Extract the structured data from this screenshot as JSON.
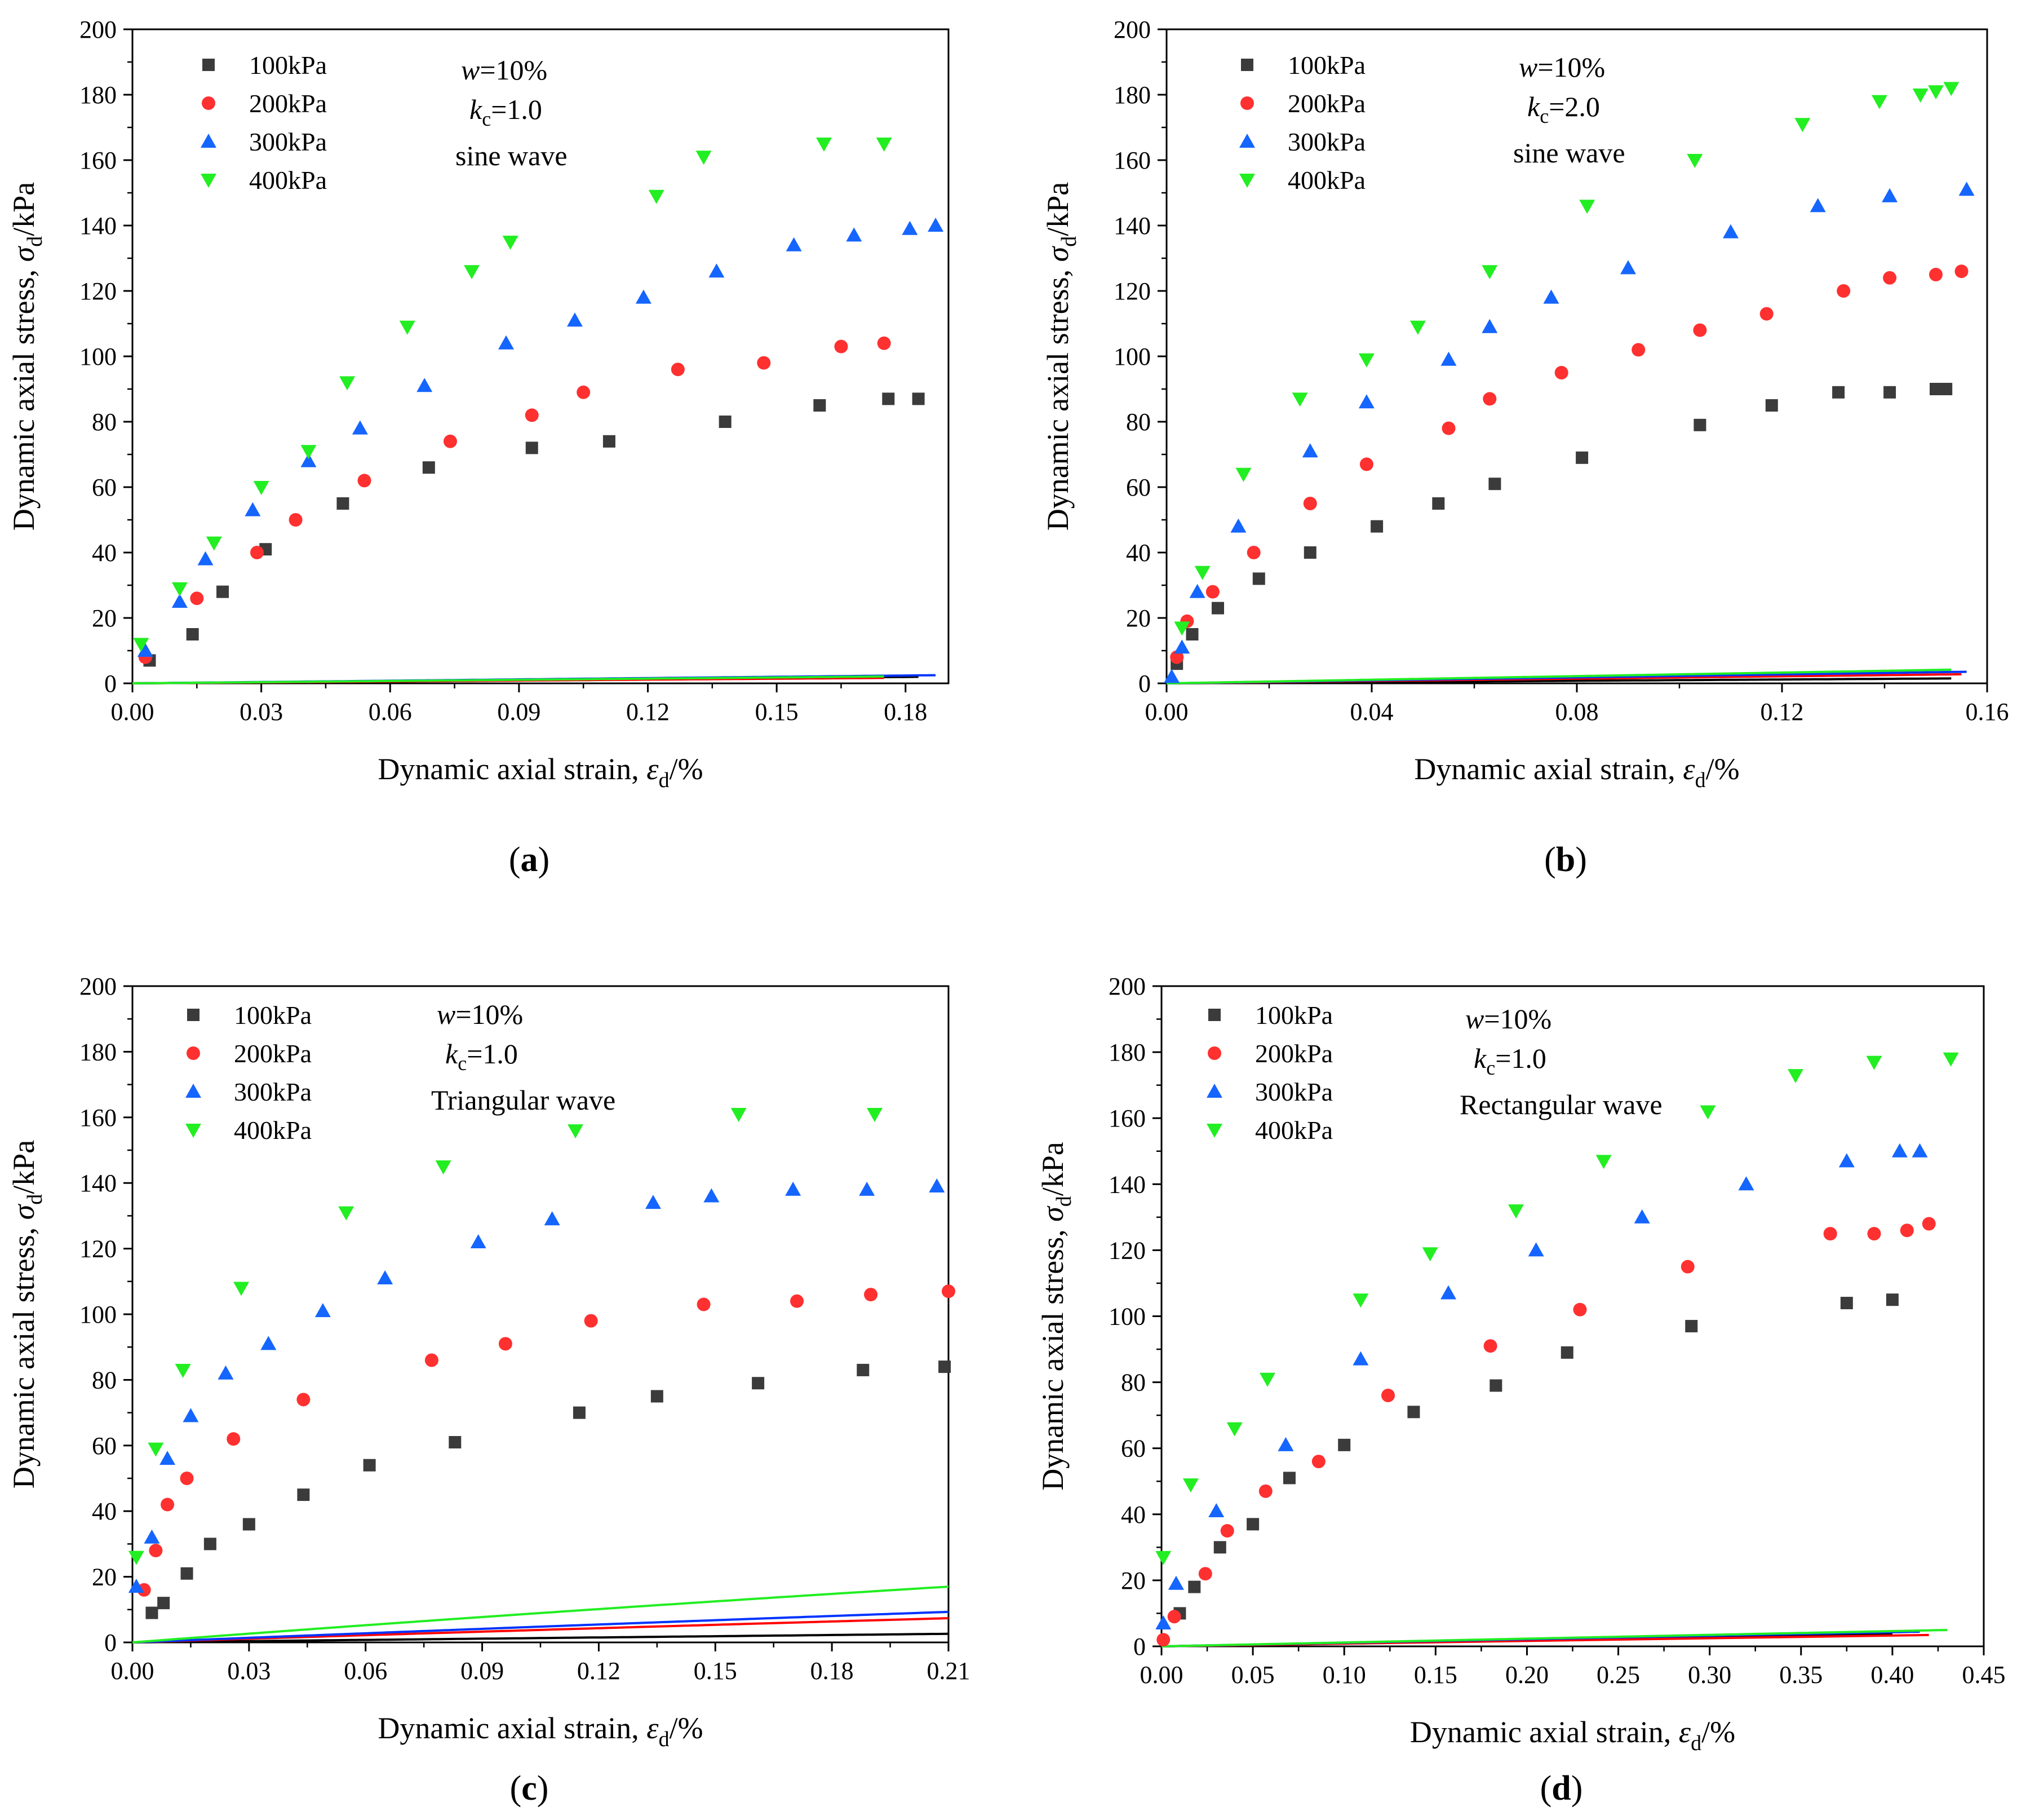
{
  "figure": {
    "panel_labels": [
      "(a)",
      "(b)",
      "(c)",
      "(d)"
    ],
    "colors": {
      "100kPa": "#3b3b3b",
      "200kPa": "#ff3030",
      "300kPa": "#1565ff",
      "400kPa": "#22ee22",
      "fit_100kPa": "#000000",
      "fit_200kPa": "#ff0000",
      "fit_300kPa": "#0033ff",
      "fit_400kPa": "#22ee22"
    },
    "markers": {
      "100kPa": "square",
      "200kPa": "circle",
      "300kPa": "triangle-up",
      "400kPa": "triangle-down"
    }
  },
  "chart_data": [
    {
      "type": "scatter",
      "panel": "(a)",
      "xlabel": "Dynamic axial strain, εd/%",
      "ylabel": "Dynamic axial stress, σd/kPa",
      "xlim": [
        0,
        0.19
      ],
      "ylim": [
        0,
        200
      ],
      "xticks": [
        "0.00",
        "0.03",
        "0.06",
        "0.09",
        "0.12",
        "0.15",
        "0.18"
      ],
      "yticks": [
        "0",
        "20",
        "40",
        "60",
        "80",
        "100",
        "120",
        "140",
        "160",
        "180",
        "200"
      ],
      "annotation": {
        "w": "w=10%",
        "kc": "kc=1.0",
        "wave": "sine wave"
      },
      "series": [
        {
          "name": "100kPa",
          "x": [
            0.004,
            0.014,
            0.021,
            0.031,
            0.049,
            0.069,
            0.093,
            0.111,
            0.138,
            0.16,
            0.176,
            0.183
          ],
          "y": [
            7,
            15,
            28,
            41,
            55,
            66,
            72,
            74,
            80,
            85,
            87,
            87
          ],
          "fit": {
            "a": 0.091,
            "b": 0.0045,
            "xmax": 0.183
          }
        },
        {
          "name": "200kPa",
          "x": [
            0.003,
            0.015,
            0.029,
            0.038,
            0.054,
            0.074,
            0.093,
            0.105,
            0.127,
            0.147,
            0.165,
            0.175
          ],
          "y": [
            8,
            26,
            40,
            50,
            62,
            74,
            82,
            89,
            96,
            98,
            103,
            104
          ],
          "fit": {
            "a": 0.1048,
            "b": 0.0038,
            "xmax": 0.175
          }
        },
        {
          "name": "300kPa",
          "x": [
            0.003,
            0.011,
            0.017,
            0.028,
            0.041,
            0.053,
            0.068,
            0.087,
            0.103,
            0.119,
            0.136,
            0.154,
            0.168,
            0.181,
            0.187
          ],
          "y": [
            10,
            25,
            38,
            53,
            68,
            78,
            91,
            104,
            111,
            118,
            126,
            134,
            137,
            139,
            140
          ],
          "fit": {
            "a": 0.0745,
            "b": 0.0032,
            "xmax": 0.187
          }
        },
        {
          "name": "400kPa",
          "x": [
            0.002,
            0.011,
            0.019,
            0.03,
            0.041,
            0.05,
            0.064,
            0.079,
            0.088,
            0.122,
            0.133,
            0.161,
            0.175
          ],
          "y": [
            12,
            29,
            43,
            60,
            71,
            92,
            109,
            126,
            135,
            149,
            161,
            165,
            165
          ],
          "fit": {
            "a": 0.0826,
            "b": 0.0018,
            "xmax": 0.175
          }
        }
      ]
    },
    {
      "type": "scatter",
      "panel": "(b)",
      "xlabel": "Dynamic axial strain, εd/%",
      "ylabel": "Dynamic axial stress, σd/kPa",
      "xlim": [
        0,
        0.16
      ],
      "ylim": [
        0,
        200
      ],
      "xticks": [
        "0.00",
        "0.04",
        "0.08",
        "0.12",
        "0.16"
      ],
      "yticks": [
        "0",
        "20",
        "40",
        "60",
        "80",
        "100",
        "120",
        "140",
        "160",
        "180",
        "200"
      ],
      "annotation": {
        "w": "w=10%",
        "kc": "kc=2.0",
        "wave": "sine wave"
      },
      "series": [
        {
          "name": "100kPa",
          "x": [
            0.002,
            0.005,
            0.01,
            0.018,
            0.028,
            0.041,
            0.053,
            0.064,
            0.081,
            0.104,
            0.118,
            0.131,
            0.141,
            0.15,
            0.152
          ],
          "y": [
            6,
            15,
            23,
            32,
            40,
            48,
            55,
            61,
            69,
            79,
            85,
            89,
            89,
            90,
            90
          ],
          "fit": {
            "a": 0.1014,
            "b": 0.0044,
            "xmax": 0.153
          }
        },
        {
          "name": "200kPa",
          "x": [
            0.002,
            0.004,
            0.009,
            0.017,
            0.028,
            0.039,
            0.055,
            0.063,
            0.077,
            0.092,
            0.104,
            0.117,
            0.132,
            0.141,
            0.15,
            0.155
          ],
          "y": [
            8,
            19,
            28,
            40,
            55,
            67,
            78,
            87,
            95,
            102,
            108,
            113,
            120,
            124,
            125,
            126
          ],
          "fit": {
            "a": 0.055,
            "b": 0.0061,
            "xmax": 0.155
          }
        },
        {
          "name": "300kPa",
          "x": [
            0.001,
            0.003,
            0.006,
            0.014,
            0.028,
            0.039,
            0.055,
            0.063,
            0.075,
            0.09,
            0.11,
            0.127,
            0.141,
            0.156
          ],
          "y": [
            2,
            11,
            28,
            48,
            71,
            86,
            99,
            109,
            118,
            127,
            138,
            146,
            149,
            151
          ],
          "fit": {
            "a": 0.0432,
            "b": 0.0055,
            "xmax": 0.156
          }
        },
        {
          "name": "400kPa",
          "x": [
            0.003,
            0.007,
            0.015,
            0.026,
            0.039,
            0.049,
            0.063,
            0.082,
            0.103,
            0.124,
            0.139,
            0.147,
            0.15,
            0.153
          ],
          "y": [
            17,
            34,
            64,
            87,
            99,
            109,
            126,
            146,
            160,
            171,
            178,
            180,
            181,
            182
          ],
          "fit": {
            "a": 0.0359,
            "b": 0.0044,
            "xmax": 0.153
          }
        }
      ]
    },
    {
      "type": "scatter",
      "panel": "(c)",
      "xlabel": "Dynamic axial strain, εd/%",
      "ylabel": "Dynamic axial stress, σd/kPa",
      "xlim": [
        0,
        0.21
      ],
      "ylim": [
        0,
        200
      ],
      "xticks": [
        "0.00",
        "0.03",
        "0.06",
        "0.09",
        "0.12",
        "0.15",
        "0.18",
        "0.21"
      ],
      "yticks": [
        "0",
        "20",
        "40",
        "60",
        "80",
        "100",
        "120",
        "140",
        "160",
        "180",
        "200"
      ],
      "annotation": {
        "w": "w=10%",
        "kc": "kc=1.0",
        "wave": "Triangular wave"
      },
      "series": [
        {
          "name": "100kPa",
          "x": [
            0.005,
            0.008,
            0.014,
            0.02,
            0.03,
            0.044,
            0.061,
            0.083,
            0.115,
            0.135,
            0.161,
            0.188,
            0.209
          ],
          "y": [
            9,
            12,
            21,
            30,
            36,
            45,
            54,
            61,
            70,
            75,
            79,
            83,
            84
          ],
          "fit": {
            "a": 0.0785,
            "b": 0.0082,
            "xmax": 0.21
          }
        },
        {
          "name": "200kPa",
          "x": [
            0.003,
            0.006,
            0.009,
            0.014,
            0.026,
            0.044,
            0.077,
            0.096,
            0.118,
            0.147,
            0.171,
            0.19,
            0.21
          ],
          "y": [
            16,
            28,
            42,
            50,
            62,
            74,
            86,
            91,
            98,
            103,
            104,
            106,
            107
          ],
          "fit": {
            "a": 0.0267,
            "b": 0.0085,
            "xmax": 0.21
          }
        },
        {
          "name": "300kPa",
          "x": [
            0.001,
            0.005,
            0.009,
            0.015,
            0.024,
            0.035,
            0.049,
            0.065,
            0.089,
            0.108,
            0.134,
            0.149,
            0.17,
            0.189,
            0.207
          ],
          "y": [
            17,
            32,
            56,
            69,
            82,
            91,
            101,
            111,
            122,
            129,
            134,
            136,
            138,
            138,
            139
          ],
          "fit": {
            "a": 0.0212,
            "b": 0.0065,
            "xmax": 0.21
          }
        },
        {
          "name": "400kPa",
          "x": [
            0.001,
            0.006,
            0.013,
            0.028,
            0.055,
            0.08,
            0.114,
            0.156,
            0.191
          ],
          "y": [
            26,
            59,
            83,
            108,
            131,
            145,
            156,
            161,
            161
          ],
          "fit": {
            "a": 0.0111,
            "b": 0.006,
            "xmax": 0.21
          }
        }
      ]
    },
    {
      "type": "scatter",
      "panel": "(d)",
      "xlabel": "Dynamic axial strain, εd/%",
      "ylabel": "Dynamic axial stress, σd/kPa",
      "xlim": [
        0,
        0.45
      ],
      "ylim": [
        0,
        200
      ],
      "xticks": [
        "0.00",
        "0.05",
        "0.10",
        "0.15",
        "0.20",
        "0.25",
        "0.30",
        "0.35",
        "0.40",
        "0.45"
      ],
      "yticks": [
        "0",
        "20",
        "40",
        "60",
        "80",
        "100",
        "120",
        "140",
        "160",
        "180",
        "200"
      ],
      "annotation": {
        "w": "w=10%",
        "kc": "kc=1.0",
        "wave": "Rectangular wave"
      },
      "series": [
        {
          "name": "100kPa",
          "x": [
            0.01,
            0.018,
            0.032,
            0.05,
            0.07,
            0.1,
            0.138,
            0.183,
            0.222,
            0.29,
            0.375,
            0.4
          ],
          "y": [
            10,
            18,
            30,
            37,
            51,
            61,
            71,
            79,
            89,
            97,
            104,
            105
          ],
          "fit": {
            "a": 0.105,
            "b": 0.0061,
            "xmax": 0.4
          }
        },
        {
          "name": "200kPa",
          "x": [
            0.001,
            0.007,
            0.024,
            0.036,
            0.057,
            0.086,
            0.124,
            0.18,
            0.229,
            0.288,
            0.366,
            0.39,
            0.408,
            0.42
          ],
          "y": [
            2,
            9,
            22,
            35,
            47,
            56,
            76,
            91,
            102,
            115,
            125,
            125,
            126,
            128
          ],
          "fit": {
            "a": 0.1203,
            "b": 0.0046,
            "xmax": 0.42
          }
        },
        {
          "name": "300kPa",
          "x": [
            0.001,
            0.008,
            0.03,
            0.068,
            0.109,
            0.157,
            0.205,
            0.263,
            0.32,
            0.375,
            0.404,
            0.415
          ],
          "y": [
            7,
            19,
            41,
            61,
            87,
            107,
            120,
            130,
            140,
            147,
            150,
            150
          ],
          "fit": {
            "a": 0.0917,
            "b": 0.0044,
            "xmax": 0.415
          }
        },
        {
          "name": "400kPa",
          "x": [
            0.001,
            0.016,
            0.04,
            0.058,
            0.109,
            0.147,
            0.194,
            0.242,
            0.299,
            0.347,
            0.39,
            0.432
          ],
          "y": [
            27,
            49,
            66,
            81,
            105,
            119,
            132,
            147,
            162,
            173,
            177,
            178
          ],
          "fit": {
            "a": 0.0851,
            "b": 0.0038,
            "xmax": 0.43
          }
        }
      ]
    }
  ]
}
